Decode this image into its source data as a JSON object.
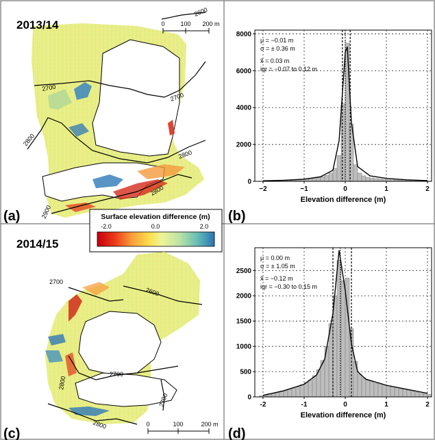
{
  "figure": {
    "colorbar": {
      "title": "Surface elevation difference (m)",
      "ticks": [
        "-2.0",
        "0.0",
        "2.0"
      ],
      "colors": [
        "#d7191c",
        "#f46d43",
        "#fdae61",
        "#fee08b",
        "#e6f598",
        "#abdda4",
        "#66c2a5",
        "#3288bd"
      ]
    },
    "scalebar": {
      "ticks": [
        "0",
        "100",
        "200 m"
      ]
    },
    "panel_a": {
      "title": "2013/14",
      "label": "(a)",
      "contours": [
        "2600",
        "2700",
        "2700",
        "2800",
        "2800",
        "2900",
        "2800"
      ]
    },
    "panel_c": {
      "title": "2014/15",
      "label": "(c)",
      "contours": [
        "2700",
        "2600",
        "2700",
        "2800",
        "2700",
        "2800"
      ]
    },
    "panel_b": {
      "label": "(b)"
    },
    "panel_d": {
      "label": "(d)"
    }
  },
  "chart_data": [
    {
      "type": "bar",
      "panel": "b",
      "xlabel": "Elevation difference (m)",
      "ylabel": "",
      "xlim": [
        -2.2,
        2.1
      ],
      "ylim": [
        0,
        8200
      ],
      "xticks": [
        "−2",
        "−1",
        "0",
        "1",
        "2"
      ],
      "xtick_values": [
        -2,
        -1,
        0,
        1,
        2
      ],
      "yticks": [
        "0",
        "2000",
        "4000",
        "6000",
        "8000"
      ],
      "ytick_values": [
        0,
        2000,
        4000,
        6000,
        8000
      ],
      "grid": true,
      "bin_width": 0.1,
      "bin_centers": [
        -2.05,
        -1.95,
        -1.85,
        -1.75,
        -1.65,
        -1.55,
        -1.45,
        -1.35,
        -1.25,
        -1.15,
        -1.05,
        -0.95,
        -0.85,
        -0.75,
        -0.65,
        -0.55,
        -0.45,
        -0.35,
        -0.25,
        -0.15,
        -0.05,
        0.05,
        0.15,
        0.25,
        0.35,
        0.45,
        0.55,
        0.65,
        0.75,
        0.85,
        0.95,
        1.05,
        1.15,
        1.25,
        1.35,
        1.45,
        1.55,
        1.65,
        1.75,
        1.85,
        1.95,
        2.05
      ],
      "values": [
        10,
        15,
        20,
        25,
        30,
        35,
        40,
        50,
        60,
        70,
        90,
        110,
        130,
        160,
        200,
        250,
        320,
        450,
        700,
        1400,
        4200,
        7500,
        3100,
        900,
        450,
        300,
        220,
        180,
        150,
        130,
        110,
        90,
        80,
        70,
        60,
        50,
        45,
        40,
        30,
        25,
        20,
        15
      ],
      "fit_curve": {
        "x": [
          -2.0,
          -1.5,
          -1.0,
          -0.6,
          -0.3,
          -0.15,
          0.0,
          0.05,
          0.15,
          0.3,
          0.6,
          1.0,
          1.5,
          2.0
        ],
        "y": [
          30,
          60,
          120,
          250,
          600,
          2200,
          7000,
          7300,
          3200,
          800,
          300,
          160,
          80,
          40
        ]
      },
      "vlines": [
        0.0,
        -0.07,
        0.12
      ],
      "stats": [
        "μ = −0.01 m",
        "σ = ± 0.36 m",
        "x̃ = 0.03 m",
        "iqr = −0.07 to 0.12 m"
      ]
    },
    {
      "type": "bar",
      "panel": "d",
      "xlabel": "Elevation difference (m)",
      "ylabel": "",
      "xlim": [
        -2.2,
        2.1
      ],
      "ylim": [
        0,
        2950
      ],
      "xticks": [
        "-2",
        "-1",
        "0",
        "1",
        "2"
      ],
      "xtick_values": [
        -2,
        -1,
        0,
        1,
        2
      ],
      "yticks": [
        "0",
        "500",
        "1000",
        "1500",
        "2000",
        "2500"
      ],
      "ytick_values": [
        0,
        500,
        1000,
        1500,
        2000,
        2500
      ],
      "grid": true,
      "bin_width": 0.1,
      "bin_centers": [
        -2.05,
        -1.95,
        -1.85,
        -1.75,
        -1.65,
        -1.55,
        -1.45,
        -1.35,
        -1.25,
        -1.15,
        -1.05,
        -0.95,
        -0.85,
        -0.75,
        -0.65,
        -0.55,
        -0.45,
        -0.35,
        -0.25,
        -0.15,
        -0.05,
        0.05,
        0.15,
        0.25,
        0.35,
        0.45,
        0.55,
        0.65,
        0.75,
        0.85,
        0.95,
        1.05,
        1.15,
        1.25,
        1.35,
        1.45,
        1.55,
        1.65,
        1.75,
        1.85,
        1.95,
        2.05
      ],
      "values": [
        20,
        40,
        60,
        70,
        90,
        110,
        130,
        150,
        170,
        200,
        240,
        280,
        330,
        420,
        540,
        720,
        1000,
        1450,
        2000,
        2700,
        2300,
        2350,
        1350,
        700,
        450,
        380,
        330,
        300,
        270,
        250,
        230,
        220,
        200,
        180,
        160,
        150,
        130,
        110,
        90,
        70,
        60,
        50
      ],
      "fit_curve": {
        "x": [
          -2.0,
          -1.5,
          -1.0,
          -0.7,
          -0.5,
          -0.3,
          -0.15,
          0.0,
          0.15,
          0.3,
          0.5,
          1.0,
          1.5,
          2.0
        ],
        "y": [
          30,
          120,
          250,
          430,
          750,
          1650,
          2900,
          2100,
          1050,
          500,
          350,
          230,
          150,
          70
        ]
      },
      "vlines": [
        -0.12,
        -0.3,
        0.15
      ],
      "stats": [
        "μ = 0.00 m",
        "σ = ± 1.05 m",
        "x̃ = −0.12 m",
        "iqr = −0.30 to 0.15 m"
      ]
    }
  ]
}
